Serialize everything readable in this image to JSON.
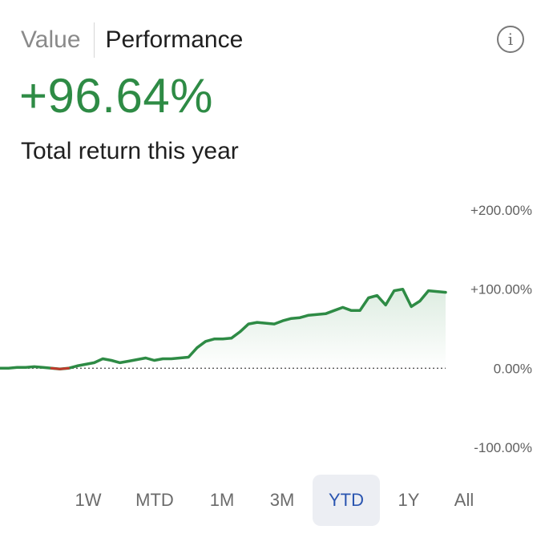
{
  "tabs": {
    "value_label": "Value",
    "performance_label": "Performance",
    "active": "Performance"
  },
  "info_icon": {
    "icon": "info-icon",
    "glyph": "i"
  },
  "summary": {
    "return_value": "+96.64%",
    "return_label": "Total return this year"
  },
  "colors": {
    "positive": "#2e8b45",
    "negative": "#c0392b",
    "selected_range_text": "#2a55b0",
    "selected_range_bg": "#eceef3"
  },
  "ranges": {
    "items": [
      "1W",
      "MTD",
      "1M",
      "3M",
      "YTD",
      "1Y",
      "All"
    ],
    "selected": "YTD"
  },
  "chart_data": {
    "type": "area",
    "title": "",
    "xlabel": "",
    "ylabel": "",
    "ylim": [
      -100,
      200
    ],
    "y_ticks": [
      200,
      100,
      0,
      -100
    ],
    "y_tick_labels": [
      "+200.00%",
      "+100.00%",
      "0.00%",
      "-100.00%"
    ],
    "zero_line": "dotted",
    "grid": false,
    "series": [
      {
        "values": [
          0,
          0,
          1,
          1,
          2,
          1,
          0,
          -1,
          0,
          3,
          5,
          7,
          12,
          10,
          7,
          9,
          11,
          13,
          10,
          12,
          12,
          13,
          14,
          26,
          34,
          37,
          37,
          38,
          46,
          56,
          58,
          57,
          56,
          60,
          63,
          64,
          67,
          68,
          69,
          73,
          77,
          73,
          73,
          89,
          92,
          80,
          98,
          100,
          78,
          85,
          98,
          97,
          96
        ]
      }
    ]
  }
}
